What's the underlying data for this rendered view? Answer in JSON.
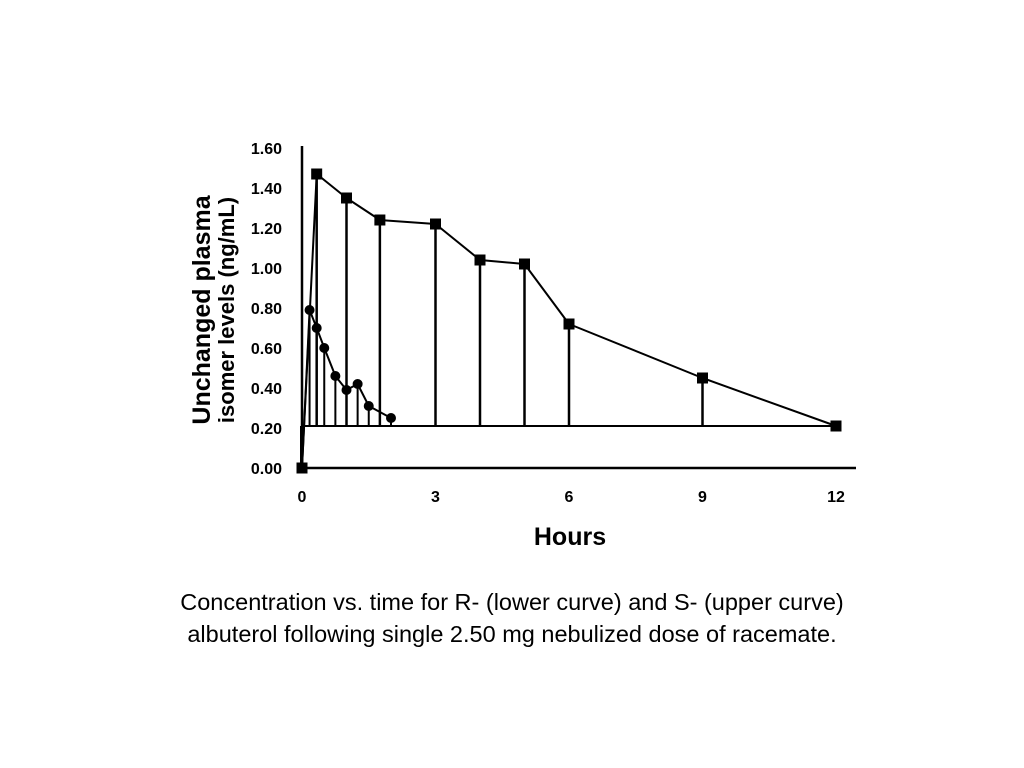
{
  "chart_data": {
    "type": "line",
    "xlabel": "Hours",
    "ylabel_line1": "Unchanged plasma",
    "ylabel_line2": "isomer levels (ng/mL)",
    "xlim": [
      0,
      12
    ],
    "ylim": [
      0,
      1.6
    ],
    "baseline_y": 0.21,
    "x_ticks": [
      {
        "value": 0,
        "label": "0"
      },
      {
        "value": 3,
        "label": "3"
      },
      {
        "value": 6,
        "label": "6"
      },
      {
        "value": 9,
        "label": "9"
      },
      {
        "value": 12,
        "label": "12"
      }
    ],
    "y_ticks": [
      {
        "value": 0.0,
        "label": "0.00"
      },
      {
        "value": 0.2,
        "label": "0.20"
      },
      {
        "value": 0.4,
        "label": "0.40"
      },
      {
        "value": 0.6,
        "label": "0.60"
      },
      {
        "value": 0.8,
        "label": "0.80"
      },
      {
        "value": 1.0,
        "label": "1.00"
      },
      {
        "value": 1.2,
        "label": "1.20"
      },
      {
        "value": 1.4,
        "label": "1.40"
      },
      {
        "value": 1.6,
        "label": "1.60"
      }
    ],
    "series": [
      {
        "curve": "S-albuterol (upper curve)",
        "marker": "square",
        "x": [
          0,
          0.33,
          1.0,
          1.75,
          3.0,
          4.0,
          5.0,
          6.0,
          9.0,
          12.0
        ],
        "y": [
          0.0,
          1.47,
          1.35,
          1.24,
          1.22,
          1.04,
          1.02,
          0.72,
          0.45,
          0.21
        ]
      },
      {
        "curve": "R-albuterol (lower curve)",
        "marker": "circle",
        "x": [
          0,
          0.17,
          0.33,
          0.5,
          0.75,
          1.0,
          1.25,
          1.5,
          2.0
        ],
        "y": [
          0.0,
          0.79,
          0.7,
          0.6,
          0.46,
          0.39,
          0.42,
          0.31,
          0.25
        ]
      }
    ]
  },
  "caption": {
    "line1": "Concentration vs. time for R- (lower curve) and S- (upper curve)",
    "line2": "albuterol following single 2.50 mg nebulized dose of racemate."
  }
}
